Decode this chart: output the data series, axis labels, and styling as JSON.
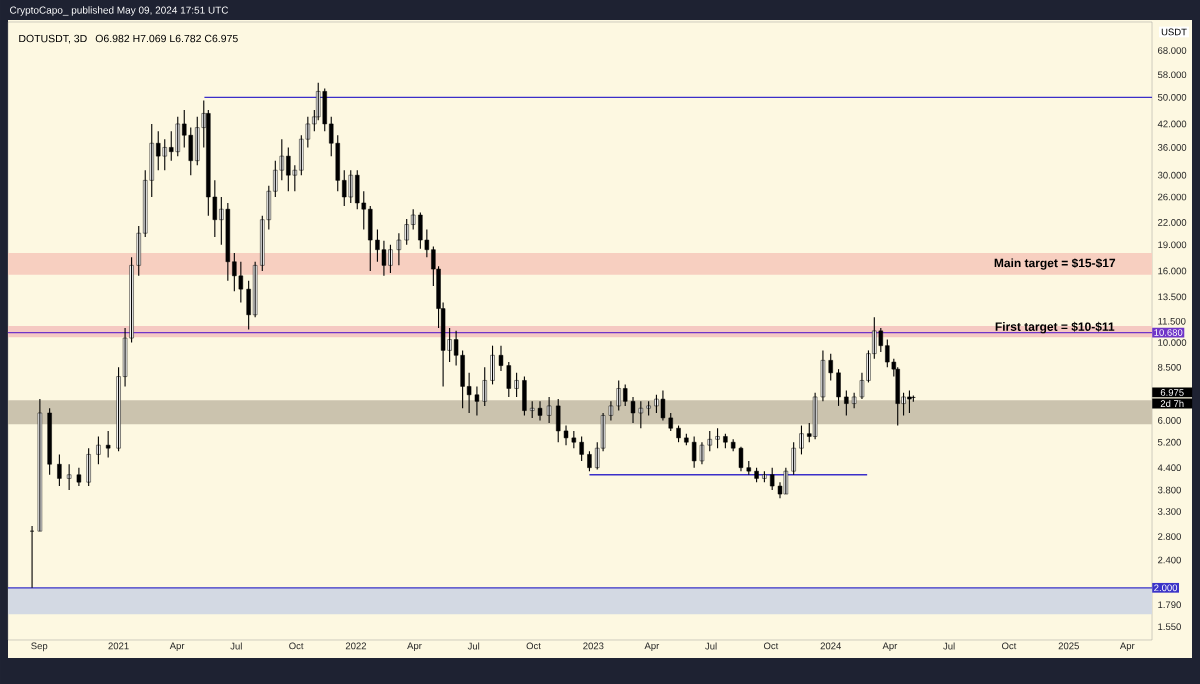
{
  "chart_data": {
    "type": "candlestick",
    "title": "DOTUSDT, 3D",
    "subtitle": "O6.982  H7.069  L6.782  C6.975",
    "ylabel": "USDT",
    "log": "y",
    "color": "#000000",
    "annotations": [
      "CryptoCapo_ published May 09, 2024 17:51 UTC",
      "6.975",
      "2d 7h"
    ],
    "xlim": [
      "2020-07-15",
      "2025-05-09"
    ],
    "ylim": [
      1.42,
      82
    ],
    "xticks": [
      {
        "value": "2020-09-01",
        "label": "Sep"
      },
      {
        "value": "2021-01-01",
        "label": "2021"
      },
      {
        "value": "2021-04-01",
        "label": "Apr"
      },
      {
        "value": "2021-07-01",
        "label": "Jul"
      },
      {
        "value": "2021-10-01",
        "label": "Oct"
      },
      {
        "value": "2022-01-01",
        "label": "2022"
      },
      {
        "value": "2022-04-01",
        "label": "Apr"
      },
      {
        "value": "2022-07-01",
        "label": "Jul"
      },
      {
        "value": "2022-10-01",
        "label": "Oct"
      },
      {
        "value": "2023-01-01",
        "label": "2023"
      },
      {
        "value": "2023-04-01",
        "label": "Apr"
      },
      {
        "value": "2023-07-01",
        "label": "Jul"
      },
      {
        "value": "2023-10-01",
        "label": "Oct"
      },
      {
        "value": "2024-01-01",
        "label": "2024"
      },
      {
        "value": "2024-04-01",
        "label": "Apr"
      },
      {
        "value": "2024-07-01",
        "label": "Jul"
      },
      {
        "value": "2024-10-01",
        "label": "Oct"
      },
      {
        "value": "2025-01-01",
        "label": "2025"
      },
      {
        "value": "2025-04-01",
        "label": "Apr"
      }
    ],
    "yticks": [
      {
        "value": 68,
        "label": "68.000"
      },
      {
        "value": 58,
        "label": "58.000"
      },
      {
        "value": 50,
        "label": "50.000"
      },
      {
        "value": 42,
        "label": "42.000"
      },
      {
        "value": 36,
        "label": "36.000"
      },
      {
        "value": 30,
        "label": "30.000"
      },
      {
        "value": 26,
        "label": "26.000"
      },
      {
        "value": 22,
        "label": "22.000"
      },
      {
        "value": 19,
        "label": "19.000"
      },
      {
        "value": 16,
        "label": "16.000"
      },
      {
        "value": 13.5,
        "label": "13.500"
      },
      {
        "value": 11.5,
        "label": "11.500"
      },
      {
        "value": 10,
        "label": "10.000"
      },
      {
        "value": 8.5,
        "label": "8.500"
      },
      {
        "value": 6,
        "label": "6.000"
      },
      {
        "value": 5.2,
        "label": "5.200"
      },
      {
        "value": 4.4,
        "label": "4.400"
      },
      {
        "value": 3.8,
        "label": "3.800"
      },
      {
        "value": 3.3,
        "label": "3.300"
      },
      {
        "value": 2.8,
        "label": "2.800"
      },
      {
        "value": 2.4,
        "label": "2.400"
      },
      {
        "value": 1.79,
        "label": "1.790"
      },
      {
        "value": 1.55,
        "label": "1.550"
      }
    ],
    "bands": [
      {
        "axis": "y",
        "from": 15.6,
        "to": 18,
        "color": "#f7cfc0",
        "label": "Main target = $15-$17"
      },
      {
        "axis": "y",
        "from": 10.36,
        "to": 11.15,
        "color": "#f5c9c2",
        "label": "First target = $10-$11"
      },
      {
        "axis": "y",
        "from": 5.85,
        "to": 6.85,
        "color": "#cbc3ae"
      },
      {
        "axis": "y",
        "from": 1.68,
        "to": 2,
        "color": "#d3d9e3"
      }
    ],
    "ref_lines": [
      {
        "axis": "y",
        "value": 10.68,
        "label": "10.680",
        "color": "#6f35c8"
      },
      {
        "axis": "y",
        "value": 2,
        "label": "2.000",
        "color": "#3a33c8"
      }
    ],
    "series": [
      {
        "type": "line",
        "x": [
          "2021-05-13",
          "2025-05-09"
        ],
        "values": [
          50,
          50
        ],
        "color": "#3b2fc9"
      },
      {
        "type": "line",
        "x": [
          "2022-12-26",
          "2024-02-26"
        ],
        "values": [
          4.2,
          4.2
        ],
        "color": "#3b2fc9"
      }
    ],
    "x": [
      "2020-08-21",
      "2020-09-02",
      "2020-09-17",
      "2020-10-02",
      "2020-10-17",
      "2020-11-01",
      "2020-11-16",
      "2020-12-01",
      "2020-12-16",
      "2021-01-01",
      "2021-01-11",
      "2021-01-21",
      "2021-02-01",
      "2021-02-11",
      "2021-02-21",
      "2021-03-03",
      "2021-03-13",
      "2021-03-23",
      "2021-04-02",
      "2021-04-12",
      "2021-04-22",
      "2021-05-02",
      "2021-05-12",
      "2021-05-19",
      "2021-05-29",
      "2021-06-08",
      "2021-06-18",
      "2021-06-28",
      "2021-07-08",
      "2021-07-20",
      "2021-07-30",
      "2021-08-10",
      "2021-08-20",
      "2021-08-30",
      "2021-09-09",
      "2021-09-19",
      "2021-09-29",
      "2021-10-09",
      "2021-10-19",
      "2021-10-29",
      "2021-11-04",
      "2021-11-14",
      "2021-11-24",
      "2021-12-04",
      "2021-12-14",
      "2021-12-24",
      "2022-01-03",
      "2022-01-13",
      "2022-01-23",
      "2022-02-03",
      "2022-02-13",
      "2022-02-23",
      "2022-03-08",
      "2022-03-20",
      "2022-03-30",
      "2022-04-10",
      "2022-04-20",
      "2022-04-30",
      "2022-05-08",
      "2022-05-15",
      "2022-05-25",
      "2022-06-04",
      "2022-06-14",
      "2022-06-24",
      "2022-07-06",
      "2022-07-18",
      "2022-07-30",
      "2022-08-12",
      "2022-08-24",
      "2022-09-05",
      "2022-09-17",
      "2022-09-29",
      "2022-10-11",
      "2022-10-25",
      "2022-11-08",
      "2022-11-20",
      "2022-12-02",
      "2022-12-14",
      "2022-12-26",
      "2023-01-07",
      "2023-01-16",
      "2023-01-28",
      "2023-02-09",
      "2023-02-19",
      "2023-03-03",
      "2023-03-15",
      "2023-03-27",
      "2023-04-08",
      "2023-04-18",
      "2023-04-30",
      "2023-05-12",
      "2023-05-24",
      "2023-06-05",
      "2023-06-17",
      "2023-06-29",
      "2023-07-11",
      "2023-07-23",
      "2023-08-04",
      "2023-08-16",
      "2023-08-28",
      "2023-09-09",
      "2023-09-21",
      "2023-10-03",
      "2023-10-15",
      "2023-10-24",
      "2023-11-05",
      "2023-11-17",
      "2023-11-29",
      "2023-12-08",
      "2023-12-20",
      "2024-01-01",
      "2024-01-13",
      "2024-01-25",
      "2024-02-06",
      "2024-02-18",
      "2024-02-28",
      "2024-03-08",
      "2024-03-18",
      "2024-03-28",
      "2024-04-07",
      "2024-04-13",
      "2024-04-22",
      "2024-05-01",
      "2024-05-07"
    ],
    "ohlc": [
      [
        2.9,
        3.0,
        2.0,
        2.9
      ],
      [
        2.9,
        6.9,
        2.9,
        6.3
      ],
      [
        6.3,
        6.5,
        4.2,
        4.5
      ],
      [
        4.5,
        4.8,
        3.9,
        4.1
      ],
      [
        4.1,
        4.5,
        3.8,
        4.2
      ],
      [
        4.2,
        4.4,
        3.9,
        4.0
      ],
      [
        4.0,
        5.0,
        3.9,
        4.8
      ],
      [
        4.8,
        5.4,
        4.5,
        5.1
      ],
      [
        5.1,
        5.6,
        4.7,
        5.0
      ],
      [
        5.0,
        8.5,
        4.9,
        8.0
      ],
      [
        8.0,
        11.0,
        7.5,
        10.3
      ],
      [
        10.3,
        17.5,
        10.0,
        16.6
      ],
      [
        16.6,
        21.5,
        15.5,
        20.5
      ],
      [
        20.5,
        31,
        20,
        29
      ],
      [
        29,
        42,
        26,
        37
      ],
      [
        37,
        40,
        31,
        34
      ],
      [
        34,
        38,
        31,
        36
      ],
      [
        36,
        40,
        33,
        35
      ],
      [
        35,
        44,
        34,
        42
      ],
      [
        42,
        46,
        36,
        39
      ],
      [
        39,
        41,
        30,
        33
      ],
      [
        33,
        44,
        32,
        41
      ],
      [
        41,
        49,
        36,
        45
      ],
      [
        45,
        46,
        23,
        26
      ],
      [
        26,
        29,
        20,
        22.4
      ],
      [
        22.4,
        26,
        19,
        24
      ],
      [
        24,
        25,
        15,
        17
      ],
      [
        17,
        18,
        14,
        15.5
      ],
      [
        15.5,
        17,
        13,
        14.2
      ],
      [
        14.2,
        15,
        10.9,
        12
      ],
      [
        12,
        17,
        11.8,
        16.6
      ],
      [
        16.6,
        23,
        16,
        22.4
      ],
      [
        22.4,
        28,
        21,
        27
      ],
      [
        27,
        33,
        26,
        31
      ],
      [
        31,
        38,
        29,
        34
      ],
      [
        34,
        36,
        27,
        30
      ],
      [
        30,
        32,
        27,
        31
      ],
      [
        31,
        39,
        30,
        38
      ],
      [
        38,
        44,
        36,
        42
      ],
      [
        42,
        46,
        40,
        44
      ],
      [
        44,
        55,
        43,
        52
      ],
      [
        52,
        53,
        40,
        42
      ],
      [
        42,
        44,
        34,
        37
      ],
      [
        37,
        39,
        27,
        29
      ],
      [
        29,
        31,
        24.5,
        26
      ],
      [
        26,
        31,
        25,
        30
      ],
      [
        30,
        31,
        24,
        25
      ],
      [
        25,
        27,
        21,
        24
      ],
      [
        24,
        24.5,
        16,
        19.6
      ],
      [
        19.6,
        21,
        17,
        18.4
      ],
      [
        18.4,
        19.5,
        15.5,
        16.6
      ],
      [
        16.6,
        19,
        15.8,
        18.4
      ],
      [
        18.4,
        20.5,
        16.6,
        19.6
      ],
      [
        19.6,
        22.5,
        19,
        21.7
      ],
      [
        21.7,
        24,
        21,
        23.1
      ],
      [
        23.1,
        23.5,
        18.5,
        19.6
      ],
      [
        19.6,
        21,
        17.5,
        18.4
      ],
      [
        18.4,
        18.8,
        14.5,
        16.2
      ],
      [
        16.2,
        16.5,
        11,
        12.5
      ],
      [
        12.5,
        13,
        7.5,
        9.5
      ],
      [
        9.5,
        11,
        8.8,
        10.2
      ],
      [
        10.2,
        10.8,
        8.6,
        9.2
      ],
      [
        9.2,
        9.5,
        6.5,
        7.5
      ],
      [
        7.5,
        8.2,
        6.3,
        7.1
      ],
      [
        7.1,
        7.5,
        6.2,
        6.8
      ],
      [
        6.8,
        8.5,
        6.6,
        7.8
      ],
      [
        7.8,
        9.8,
        7.6,
        9.2
      ],
      [
        9.2,
        9.8,
        8.3,
        8.6
      ],
      [
        8.6,
        8.8,
        7.0,
        7.4
      ],
      [
        7.4,
        8.2,
        7.0,
        7.8
      ],
      [
        7.8,
        8.0,
        6.2,
        6.4
      ],
      [
        6.4,
        6.8,
        6.1,
        6.5
      ],
      [
        6.5,
        6.8,
        6.0,
        6.2
      ],
      [
        6.2,
        7.0,
        5.9,
        6.6
      ],
      [
        6.6,
        6.9,
        5.2,
        5.6
      ],
      [
        5.6,
        5.8,
        5.1,
        5.35
      ],
      [
        5.35,
        5.6,
        5.0,
        5.2
      ],
      [
        5.2,
        5.4,
        4.6,
        4.8
      ],
      [
        4.8,
        4.9,
        4.3,
        4.4
      ],
      [
        4.4,
        5.2,
        4.35,
        5.0
      ],
      [
        5.0,
        6.3,
        4.9,
        6.2
      ],
      [
        6.2,
        6.8,
        6.0,
        6.6
      ],
      [
        6.6,
        7.8,
        6.4,
        7.4
      ],
      [
        7.4,
        7.6,
        6.6,
        6.8
      ],
      [
        6.8,
        7.0,
        5.9,
        6.3
      ],
      [
        6.3,
        6.8,
        5.7,
        6.5
      ],
      [
        6.5,
        6.8,
        6.2,
        6.6
      ],
      [
        6.6,
        7.1,
        6.3,
        6.9
      ],
      [
        6.9,
        7.3,
        6.0,
        6.1
      ],
      [
        6.1,
        6.3,
        5.6,
        5.7
      ],
      [
        5.7,
        5.8,
        5.2,
        5.35
      ],
      [
        5.35,
        5.5,
        5.1,
        5.2
      ],
      [
        5.2,
        5.4,
        4.4,
        4.6
      ],
      [
        4.6,
        5.2,
        4.5,
        5.1
      ],
      [
        5.1,
        5.6,
        4.9,
        5.3
      ],
      [
        5.3,
        5.7,
        5.0,
        5.4
      ],
      [
        5.4,
        5.5,
        5.0,
        5.2
      ],
      [
        5.2,
        5.3,
        4.9,
        5.0
      ],
      [
        5.0,
        5.05,
        4.3,
        4.4
      ],
      [
        4.4,
        4.6,
        4.2,
        4.3
      ],
      [
        4.3,
        4.4,
        4.0,
        4.1
      ],
      [
        4.1,
        4.3,
        4.0,
        4.2
      ],
      [
        4.2,
        4.4,
        3.8,
        3.9
      ],
      [
        3.9,
        4.0,
        3.6,
        3.7
      ],
      [
        3.7,
        4.4,
        3.7,
        4.3
      ],
      [
        4.3,
        5.2,
        4.2,
        5.0
      ],
      [
        5.0,
        5.8,
        4.8,
        5.5
      ],
      [
        5.5,
        5.9,
        5.2,
        5.4
      ],
      [
        5.4,
        7.2,
        5.3,
        7.0
      ],
      [
        7.0,
        9.5,
        6.8,
        8.9
      ],
      [
        8.9,
        9.3,
        7.8,
        8.2
      ],
      [
        8.2,
        8.4,
        6.6,
        7.0
      ],
      [
        7.0,
        7.3,
        6.2,
        6.7
      ],
      [
        6.7,
        7.2,
        6.5,
        7.0
      ],
      [
        7.0,
        8.2,
        6.9,
        7.8
      ],
      [
        7.8,
        9.5,
        7.7,
        9.3
      ],
      [
        9.3,
        11.8,
        9.0,
        10.8
      ],
      [
        10.8,
        11.0,
        9.4,
        9.8
      ],
      [
        9.8,
        10.2,
        8.5,
        8.8
      ],
      [
        8.8,
        9.0,
        8.0,
        8.4
      ],
      [
        8.4,
        8.5,
        5.8,
        6.7
      ],
      [
        6.7,
        7.2,
        6.2,
        7.0
      ],
      [
        7.0,
        7.3,
        6.3,
        6.9
      ],
      [
        6.982,
        7.069,
        6.782,
        6.975
      ]
    ]
  }
}
